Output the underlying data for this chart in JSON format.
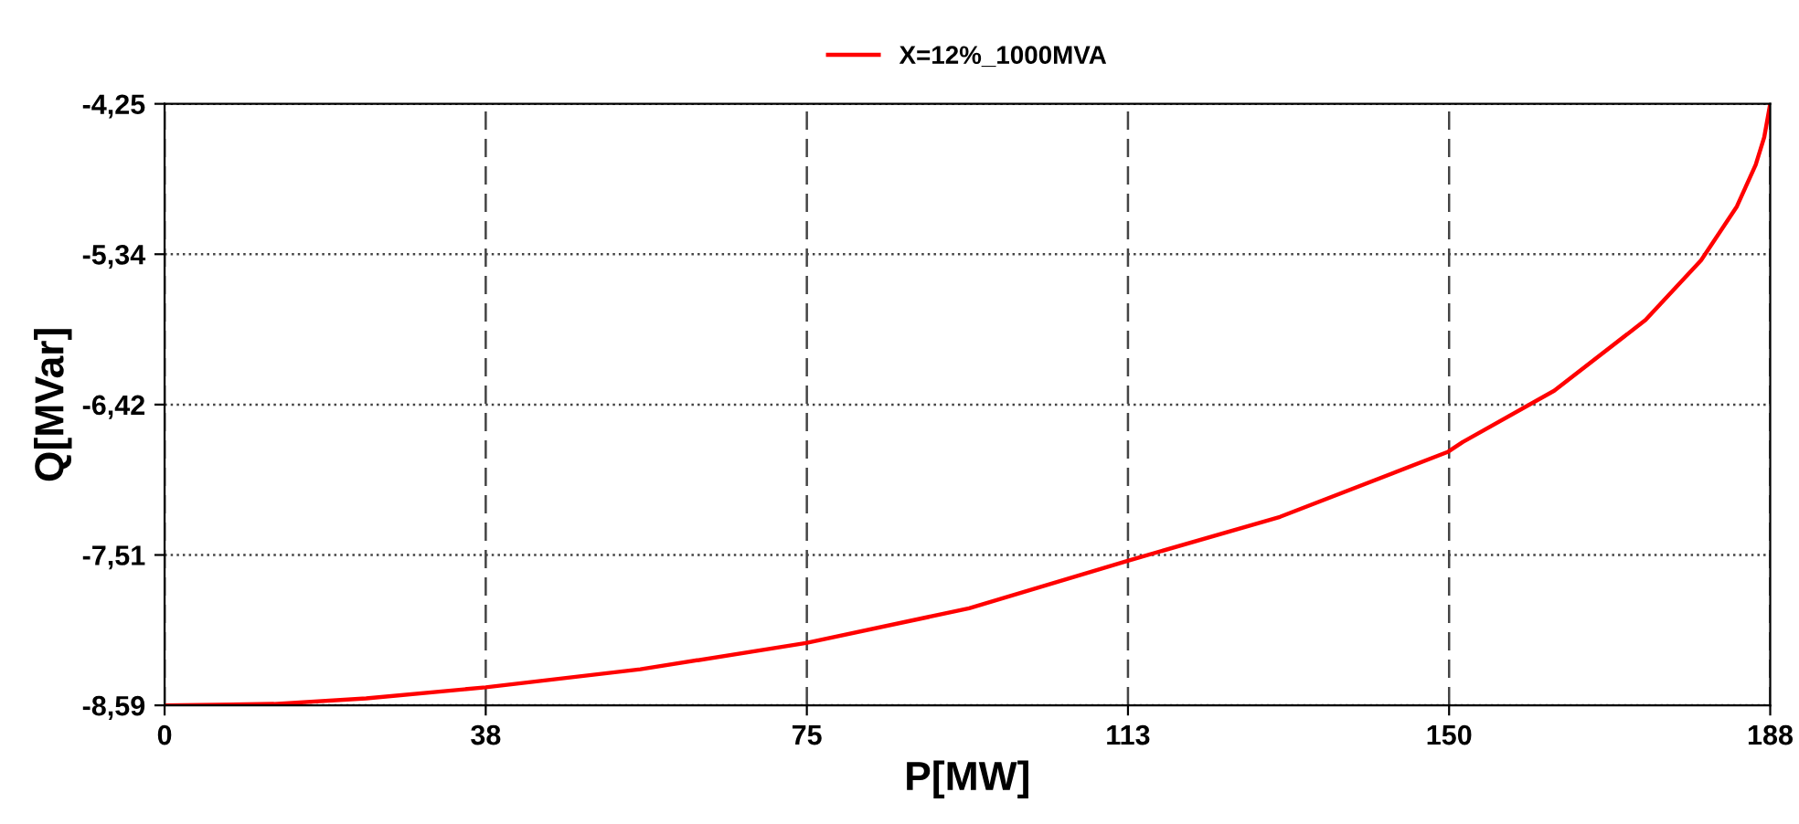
{
  "chart_data": {
    "type": "line",
    "xlabel": "P[MW]",
    "ylabel": "Q[MVar]",
    "legend": "top",
    "grid": true,
    "line_style": "solid",
    "marker": "none",
    "xlim": [
      0,
      188
    ],
    "ylim": [
      -8.59,
      -4.25
    ],
    "xticks": [
      0,
      {
        "value": 37.6,
        "label": "38"
      },
      {
        "value": 75.2,
        "label": "75"
      },
      {
        "value": 112.8,
        "label": "113"
      },
      {
        "value": 150.4,
        "label": "150"
      },
      {
        "value": 188,
        "label": "188"
      }
    ],
    "yticks": [
      {
        "value": -8.59,
        "label": "-8,59"
      },
      {
        "value": -7.505,
        "label": "-7,51"
      },
      {
        "value": -6.42,
        "label": "-6,42"
      },
      {
        "value": -5.335,
        "label": "-5,34"
      },
      {
        "value": -4.25,
        "label": "-4,25"
      }
    ],
    "series": [
      {
        "name": "X=12%_1000MVA",
        "color": "#ff0000",
        "x": [
          0,
          12.8,
          23.6,
          37.6,
          55.7,
          75.1,
          94.2,
          112.6,
          130.6,
          150.3,
          152,
          162.7,
          173.4,
          179.9,
          184.1,
          186.3,
          187.3,
          188
        ],
        "values": [
          -8.59,
          -8.58,
          -8.54,
          -8.46,
          -8.33,
          -8.14,
          -7.89,
          -7.55,
          -7.23,
          -6.76,
          -6.69,
          -6.32,
          -5.81,
          -5.38,
          -4.99,
          -4.69,
          -4.49,
          -4.25
        ]
      }
    ]
  }
}
